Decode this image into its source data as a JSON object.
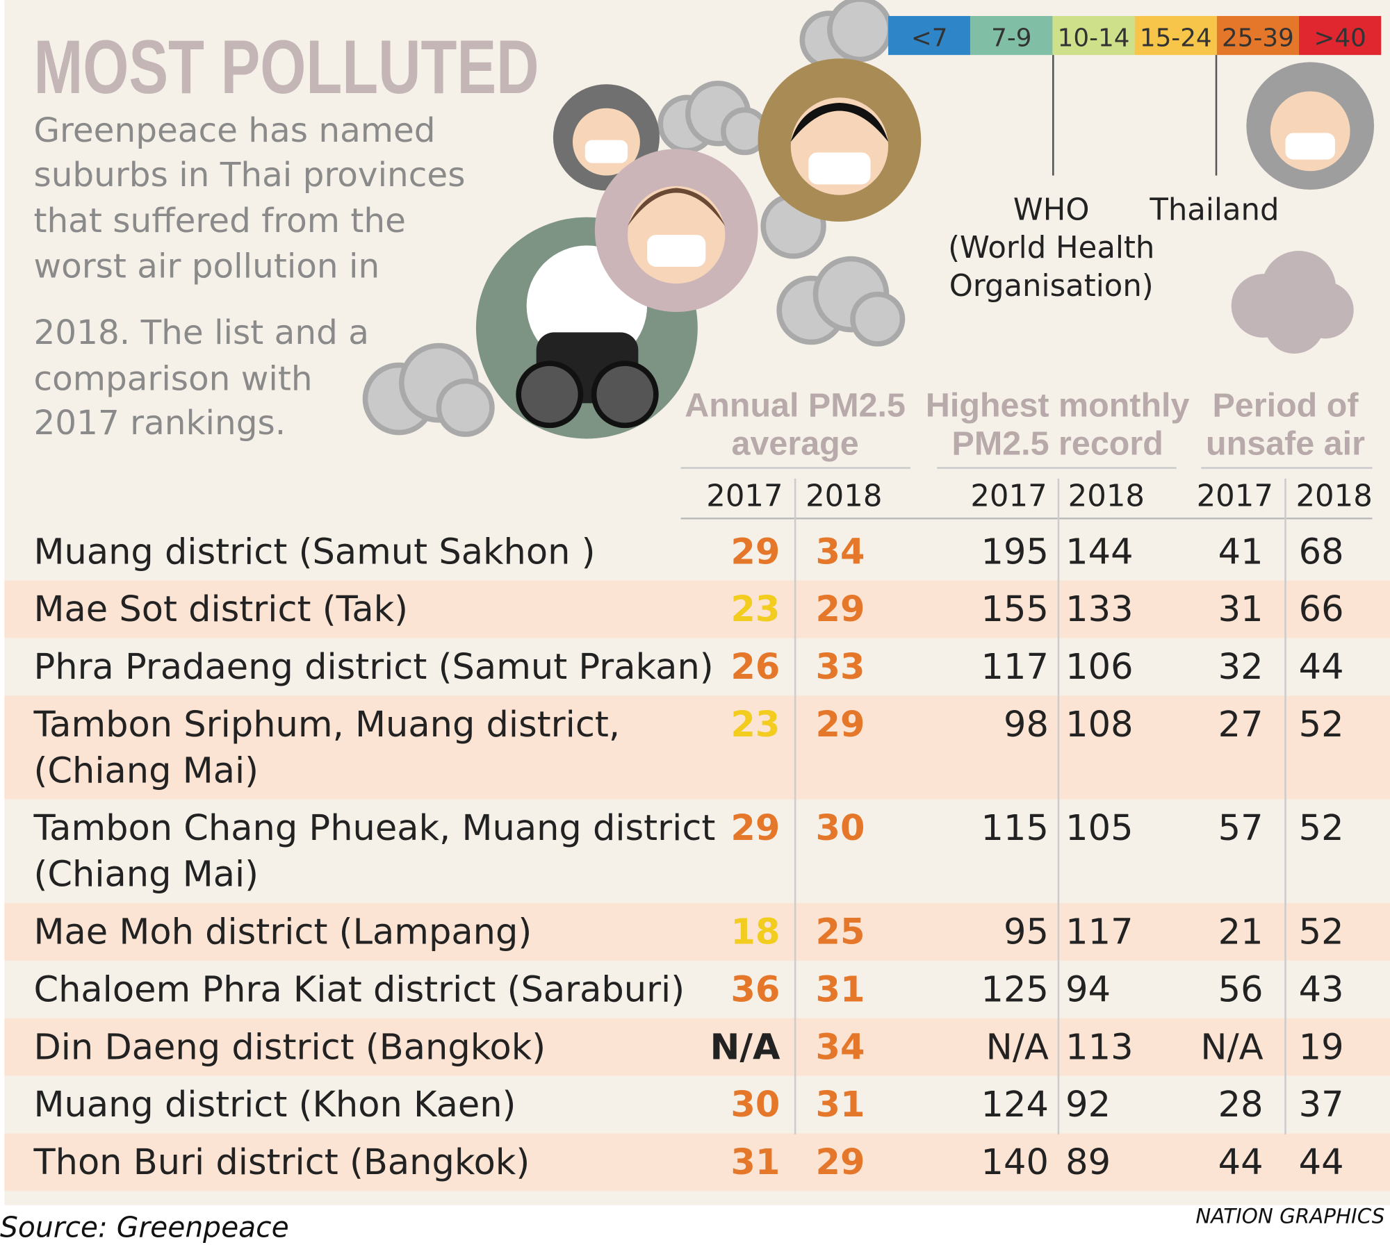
{
  "header": {
    "title": "MOST POLLUTED",
    "intro_lines": [
      "Greenpeace has named",
      "suburbs in Thai provinces",
      "that suffered from the",
      "worst air pollution in",
      "2018. The list and a",
      "comparison with",
      "2017 rankings."
    ]
  },
  "scale": [
    {
      "label": "<7",
      "color": "#2e86c9"
    },
    {
      "label": "7-9",
      "color": "#80bfa6"
    },
    {
      "label": "10-14",
      "color": "#cfe08a"
    },
    {
      "label": "15-24",
      "color": "#f7c54a"
    },
    {
      "label": "25-39",
      "color": "#e5772a"
    },
    {
      "label": ">40",
      "color": "#e0262e"
    }
  ],
  "references": [
    {
      "label_lines": [
        "WHO",
        "(World Health",
        "Organisation)"
      ]
    },
    {
      "label_lines": [
        "Thailand"
      ]
    }
  ],
  "table": {
    "groups": [
      {
        "label_lines": [
          "Annual PM2.5",
          "average"
        ],
        "years": [
          "2017",
          "2018"
        ]
      },
      {
        "label_lines": [
          "Highest monthly",
          "PM2.5 record"
        ],
        "years": [
          "2017",
          "2018"
        ]
      },
      {
        "label_lines": [
          "Period of",
          "unsafe air"
        ],
        "years": [
          "2017",
          "2018"
        ]
      }
    ],
    "rows": [
      {
        "name_lines": [
          "Muang district (Samut Sakhon )"
        ],
        "cells": [
          29,
          34,
          195,
          144,
          41,
          68
        ],
        "avg_colors": [
          "#e5772a",
          "#e5772a"
        ]
      },
      {
        "name_lines": [
          "Mae Sot district (Tak)"
        ],
        "cells": [
          23,
          29,
          155,
          133,
          31,
          66
        ],
        "avg_colors": [
          "#f2cc1f",
          "#e5772a"
        ]
      },
      {
        "name_lines": [
          "Phra Pradaeng district (Samut Prakan)"
        ],
        "cells": [
          26,
          33,
          117,
          106,
          32,
          44
        ],
        "avg_colors": [
          "#e5772a",
          "#e5772a"
        ]
      },
      {
        "name_lines": [
          "Tambon Sriphum, Muang district,",
          "(Chiang Mai)"
        ],
        "cells": [
          23,
          29,
          98,
          108,
          27,
          52
        ],
        "avg_colors": [
          "#f2cc1f",
          "#e5772a"
        ]
      },
      {
        "name_lines": [
          "Tambon Chang Phueak, Muang district",
          "(Chiang Mai)"
        ],
        "cells": [
          29,
          30,
          115,
          105,
          57,
          52
        ],
        "avg_colors": [
          "#e5772a",
          "#e5772a"
        ]
      },
      {
        "name_lines": [
          "Mae Moh district (Lampang)"
        ],
        "cells": [
          18,
          25,
          95,
          117,
          21,
          52
        ],
        "avg_colors": [
          "#f2cc1f",
          "#e5772a"
        ]
      },
      {
        "name_lines": [
          "Chaloem Phra Kiat district (Saraburi)"
        ],
        "cells": [
          36,
          31,
          125,
          94,
          56,
          43
        ],
        "avg_colors": [
          "#e5772a",
          "#e5772a"
        ]
      },
      {
        "name_lines": [
          "Din Daeng district (Bangkok)"
        ],
        "cells": [
          "N/A",
          34,
          "N/A",
          113,
          "N/A",
          19
        ],
        "avg_colors": [
          "#222222",
          "#e5772a"
        ]
      },
      {
        "name_lines": [
          "Muang district (Khon Kaen)"
        ],
        "cells": [
          30,
          31,
          124,
          92,
          28,
          37
        ],
        "avg_colors": [
          "#e5772a",
          "#e5772a"
        ]
      },
      {
        "name_lines": [
          "Thon Buri district (Bangkok)"
        ],
        "cells": [
          31,
          29,
          140,
          89,
          44,
          44
        ],
        "avg_colors": [
          "#e5772a",
          "#e5772a"
        ]
      }
    ]
  },
  "footer": {
    "source": "Source: Greenpeace",
    "credit": "NATION GRAPHICS"
  }
}
